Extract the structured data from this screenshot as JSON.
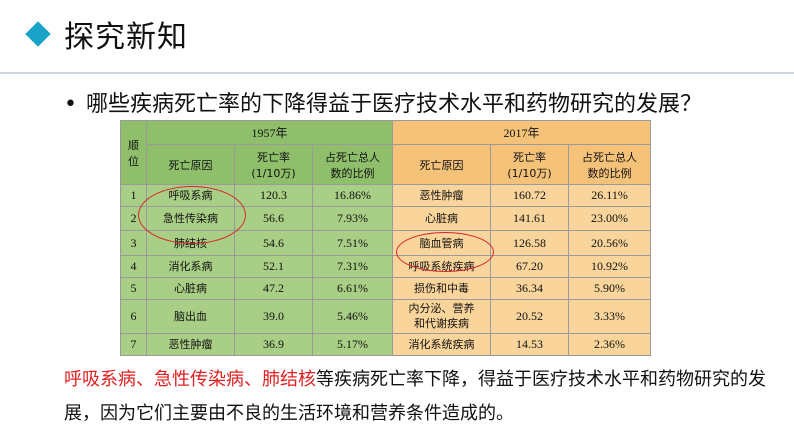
{
  "header": {
    "title": "探究新知"
  },
  "question": {
    "bullet": "•",
    "text": "哪些疾病死亡率的下降得益于医疗技术水平和药物研究的发展？"
  },
  "table": {
    "rank_header": "顺\n位",
    "year_1957": "1957年",
    "year_2017": "2017年",
    "col_headers": {
      "cause": "死亡原因",
      "rate": "死亡率\n(1/10万)",
      "share": "占死亡总人\n数的比例"
    },
    "rows": [
      {
        "rank": "1",
        "c57": "呼吸系病",
        "r57": "120.3",
        "s57": "16.86%",
        "c17": "恶性肿瘤",
        "r17": "160.72",
        "s17": "26.11%"
      },
      {
        "rank": "2",
        "c57": "急性传染病",
        "r57": "56.6",
        "s57": "7.93%",
        "c17": "心脏病",
        "r17": "141.61",
        "s17": "23.00%"
      },
      {
        "rank": "3",
        "c57": "肺结核",
        "r57": "54.6",
        "s57": "7.51%",
        "c17": "脑血管病",
        "r17": "126.58",
        "s17": "20.56%"
      },
      {
        "rank": "4",
        "c57": "消化系病",
        "r57": "52.1",
        "s57": "7.31%",
        "c17": "呼吸系统疾病",
        "r17": "67.20",
        "s17": "10.92%"
      },
      {
        "rank": "5",
        "c57": "心脏病",
        "r57": "47.2",
        "s57": "6.61%",
        "c17": "损伤和中毒",
        "r17": "36.34",
        "s17": "5.90%"
      },
      {
        "rank": "6",
        "c57": "脑出血",
        "r57": "39.0",
        "s57": "5.46%",
        "c17": "内分泌、营养\n和代谢疾病",
        "r17": "20.52",
        "s17": "3.33%"
      },
      {
        "rank": "7",
        "c57": "恶性肿瘤",
        "r57": "36.9",
        "s57": "5.17%",
        "c17": "消化系统疾病",
        "r17": "14.53",
        "s17": "2.36%"
      }
    ]
  },
  "note": {
    "highlight": "呼吸系病、急性传染病、肺结核",
    "rest": "等疾病死亡率下降，得益于医疗技术水平和药物研究的发展，因为它们主要由不良的生活环境和营养条件造成的。"
  },
  "colors": {
    "accent": "#1aa3c9",
    "green": "#8fbf6b",
    "orange": "#f5c27a",
    "red": "#e02020"
  }
}
